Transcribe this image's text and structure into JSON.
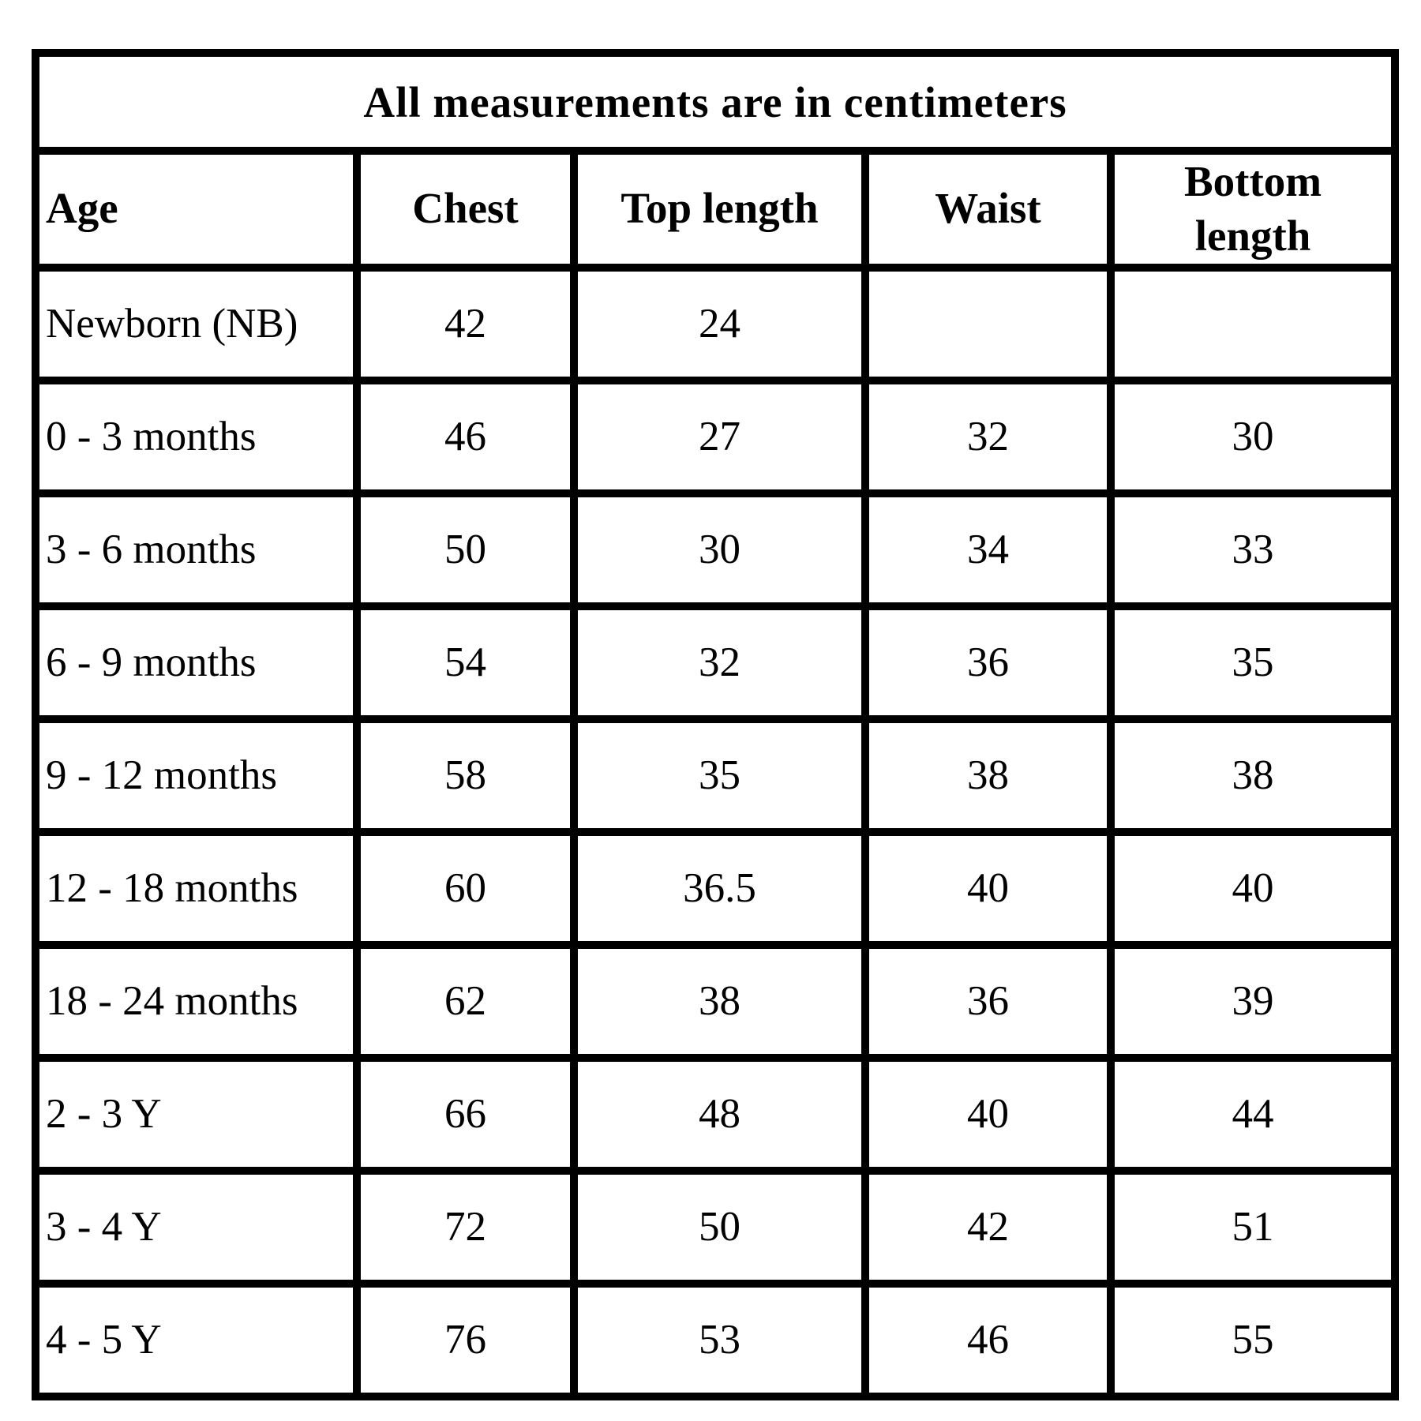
{
  "chart_data": {
    "type": "table",
    "title": "All measurements are in centimeters",
    "unit": "centimeters",
    "columns": [
      "Age",
      "Chest",
      "Top length",
      "Waist",
      "Bottom length"
    ],
    "rows": [
      [
        "Newborn (NB)",
        "42",
        "24",
        "",
        ""
      ],
      [
        "0 - 3 months",
        "46",
        "27",
        "32",
        "30"
      ],
      [
        "3 - 6 months",
        "50",
        "30",
        "34",
        "33"
      ],
      [
        "6 - 9 months",
        "54",
        "32",
        "36",
        "35"
      ],
      [
        "9 - 12 months",
        "58",
        "35",
        "38",
        "38"
      ],
      [
        "12 - 18 months",
        "60",
        "36.5",
        "40",
        "40"
      ],
      [
        "18 - 24 months",
        "62",
        "38",
        "36",
        "39"
      ],
      [
        "2 - 3 Y",
        "66",
        "48",
        "40",
        "44"
      ],
      [
        "3 - 4 Y",
        "72",
        "50",
        "42",
        "51"
      ],
      [
        "4 - 5 Y",
        "76",
        "53",
        "46",
        "55"
      ]
    ],
    "layout": {
      "border_color": "#000000",
      "background_color": "#ffffff",
      "text_color": "#000000"
    }
  }
}
